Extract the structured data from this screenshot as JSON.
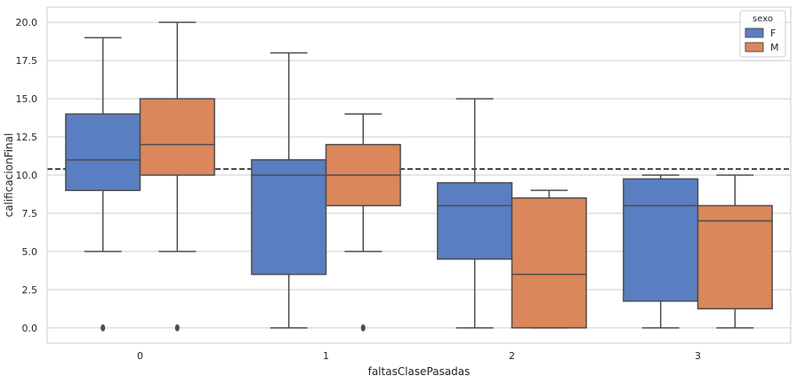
{
  "chart_data": {
    "type": "boxplot",
    "xlabel": "faltasClasePasadas",
    "ylabel": "calificacionFinal",
    "categories": [
      "0",
      "1",
      "2",
      "3"
    ],
    "ylim": [
      -1,
      21
    ],
    "yticks": [
      0.0,
      2.5,
      5.0,
      7.5,
      10.0,
      12.5,
      15.0,
      17.5,
      20.0
    ],
    "ytick_labels": [
      "0.0",
      "2.5",
      "5.0",
      "7.5",
      "10.0",
      "12.5",
      "15.0",
      "17.5",
      "20.0"
    ],
    "grid": "horizontal",
    "reference_line": {
      "value": 10.4,
      "style": "dashed"
    },
    "legend": {
      "title": "sexo",
      "placement": "top-right"
    },
    "series": [
      {
        "name": "F",
        "color": "#5a7ec2",
        "boxes": [
          {
            "min": 5,
            "q1": 9,
            "median": 11,
            "q3": 14,
            "max": 19,
            "outliers": [
              0
            ]
          },
          {
            "min": 0,
            "q1": 3.5,
            "median": 10,
            "q3": 11,
            "max": 18,
            "outliers": []
          },
          {
            "min": 0,
            "q1": 4.5,
            "median": 8,
            "q3": 9.5,
            "max": 15,
            "outliers": []
          },
          {
            "min": 0,
            "q1": 1.75,
            "median": 8,
            "q3": 9.75,
            "max": 10,
            "outliers": []
          }
        ]
      },
      {
        "name": "M",
        "color": "#d9875b",
        "boxes": [
          {
            "min": 5,
            "q1": 10,
            "median": 12,
            "q3": 15,
            "max": 20,
            "outliers": [
              0
            ]
          },
          {
            "min": 5,
            "q1": 8,
            "median": 10,
            "q3": 12,
            "max": 14,
            "outliers": [
              0
            ]
          },
          {
            "min": 0,
            "q1": 0,
            "median": 3.5,
            "q3": 8.5,
            "max": 9,
            "outliers": []
          },
          {
            "min": 0,
            "q1": 1.25,
            "median": 7,
            "q3": 8,
            "max": 10,
            "outliers": []
          }
        ]
      }
    ]
  }
}
